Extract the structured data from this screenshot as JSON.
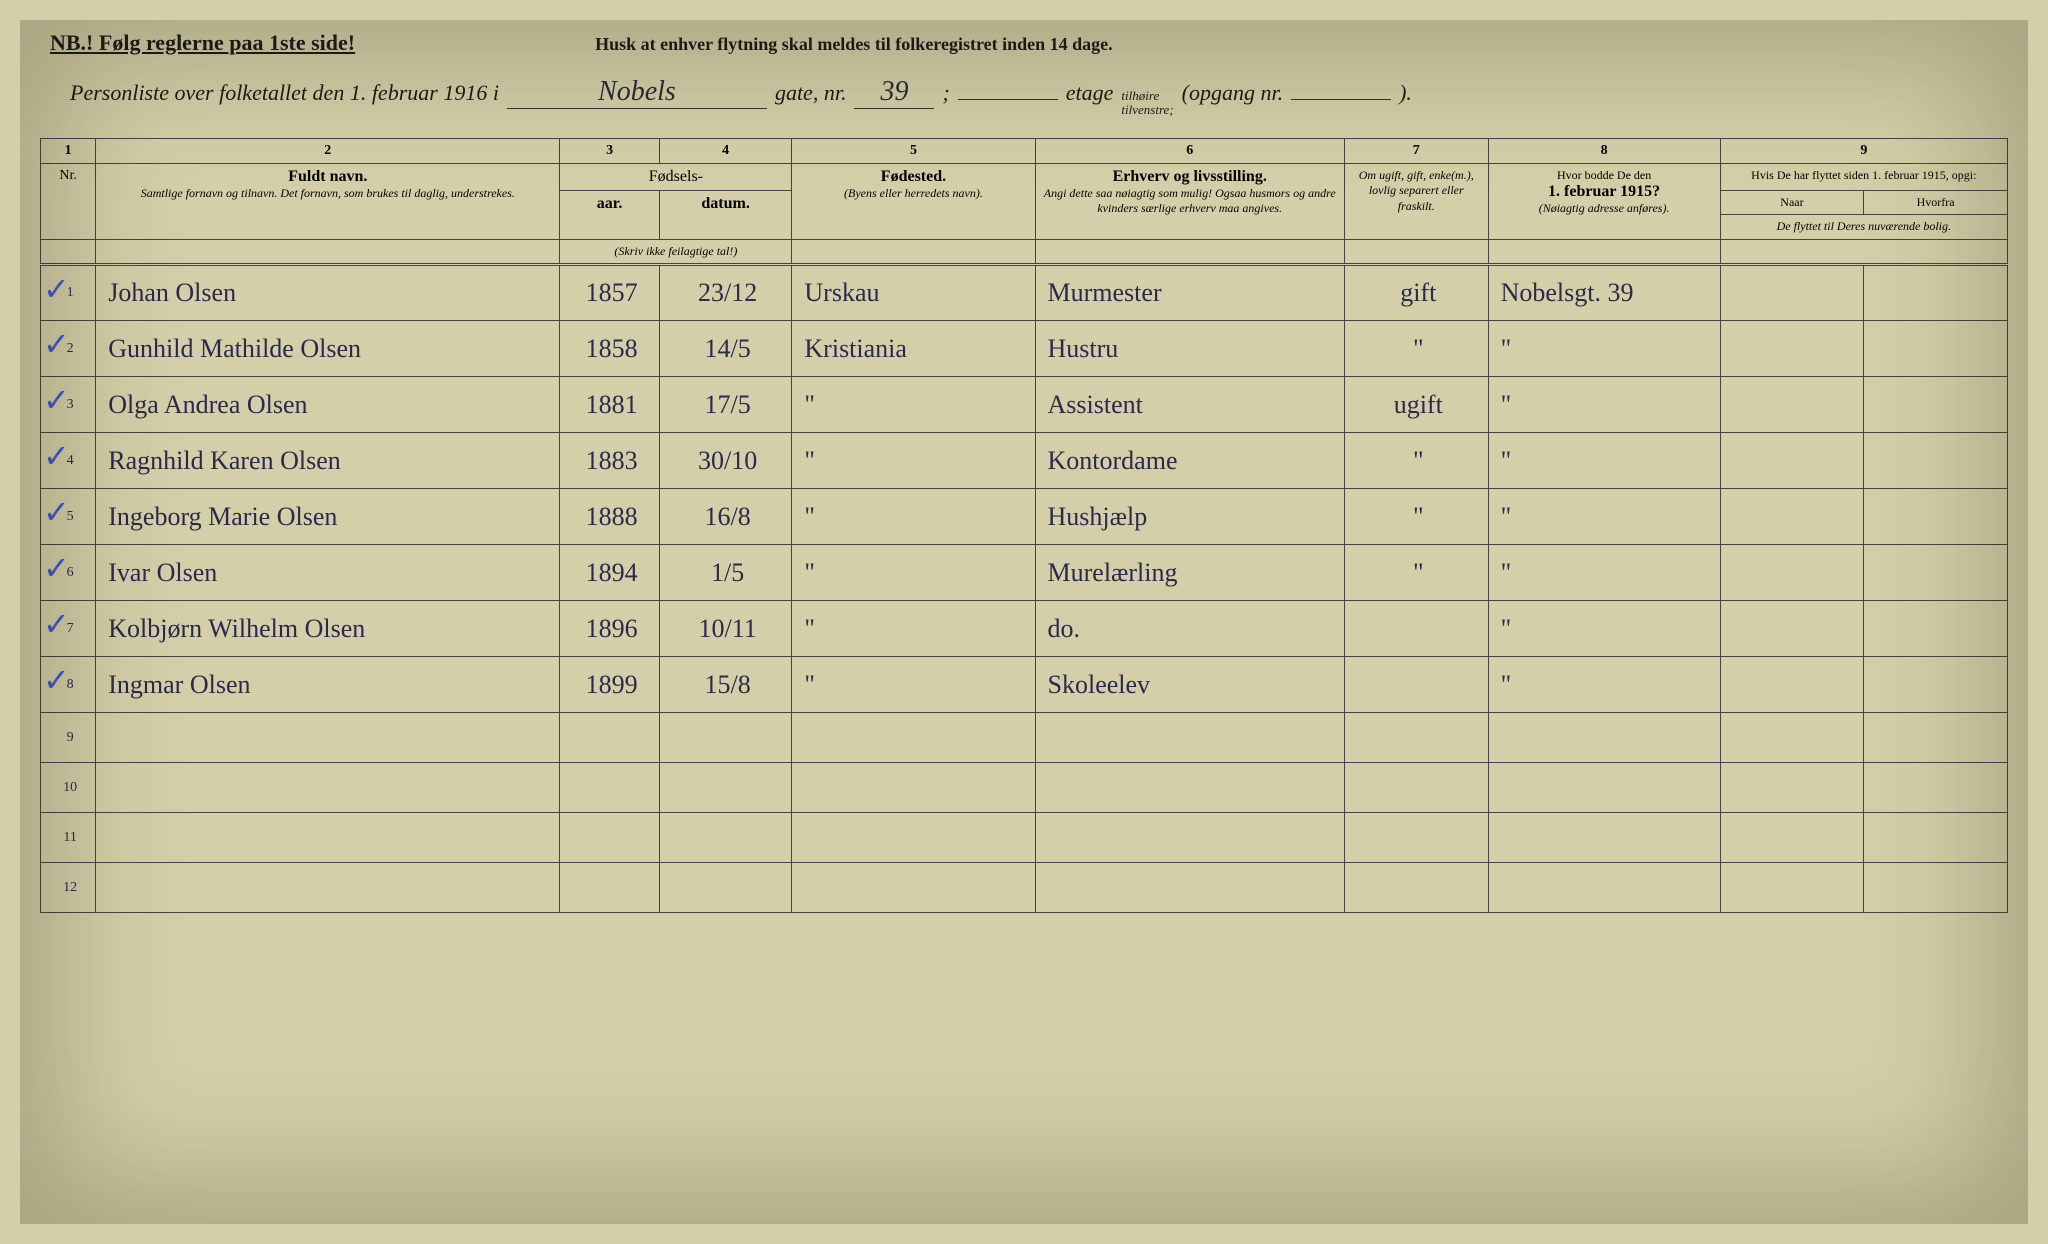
{
  "header": {
    "nb": "NB.! Følg reglerne paa 1ste side!",
    "reminder": "Husk at enhver flytning skal meldes til folkeregistret inden 14 dage.",
    "title_prefix": "Personliste over folketallet den 1. februar 1916 i",
    "street_name": "Nobels",
    "gate_label": "gate, nr.",
    "gate_nr": "39",
    "semicolon": ";",
    "etage_label": "etage",
    "etage_value": "",
    "tilheire": "tilhøire",
    "tilvenstre": "tilvenstre;",
    "opgang_label": "(opgang nr.",
    "opgang_value": "",
    "closing_paren": ")."
  },
  "column_numbers": [
    "1",
    "2",
    "3",
    "4",
    "5",
    "6",
    "7",
    "8",
    "9"
  ],
  "columns": {
    "nr": "Nr.",
    "fuldt_navn_main": "Fuldt navn.",
    "fuldt_navn_sub": "Samtlige fornavn og tilnavn. Det fornavn, som brukes til daglig, understrekes.",
    "fodsels": "Fødsels-",
    "aar": "aar.",
    "datum": "datum.",
    "aar_note": "(Skriv ikke feilagtige tal!)",
    "fodested_main": "Fødested.",
    "fodested_sub": "(Byens eller herredets navn).",
    "erhverv_main": "Erhverv og livsstilling.",
    "erhverv_sub": "Angi dette saa nøiagtig som mulig! Ogsaa husmors og andre kvinders særlige erhverv maa angives.",
    "om_ugift": "Om ugift, gift, enke(m.), lovlig separert eller fraskilt.",
    "hvor_bodde_main": "Hvor bodde De den 1. februar 1915?",
    "hvor_bodde_sub": "(Nøiagtig adresse anføres).",
    "flyttet_main": "Hvis De har flyttet siden 1. februar 1915, opgi:",
    "naar": "Naar",
    "hvorfra": "Hvorfra",
    "flyttet_sub": "De flyttet til Deres nuværende bolig."
  },
  "rows": [
    {
      "nr": "1",
      "check": true,
      "navn": "Johan Olsen",
      "aar": "1857",
      "datum": "23/12",
      "fodested": "Urskau",
      "erhverv": "Murmester",
      "status": "gift",
      "bodde": "Nobelsgt. 39",
      "naar": "",
      "hvorfra": ""
    },
    {
      "nr": "2",
      "check": true,
      "navn": "Gunhild Mathilde Olsen",
      "aar": "1858",
      "datum": "14/5",
      "fodested": "Kristiania",
      "erhverv": "Hustru",
      "status": "\"",
      "bodde": "\"",
      "naar": "",
      "hvorfra": ""
    },
    {
      "nr": "3",
      "check": true,
      "navn": "Olga Andrea Olsen",
      "aar": "1881",
      "datum": "17/5",
      "fodested": "\"",
      "erhverv": "Assistent",
      "status": "ugift",
      "bodde": "\"",
      "naar": "",
      "hvorfra": ""
    },
    {
      "nr": "4",
      "check": true,
      "navn": "Ragnhild Karen Olsen",
      "aar": "1883",
      "datum": "30/10",
      "fodested": "\"",
      "erhverv": "Kontordame",
      "status": "\"",
      "bodde": "\"",
      "naar": "",
      "hvorfra": ""
    },
    {
      "nr": "5",
      "check": true,
      "navn": "Ingeborg Marie Olsen",
      "aar": "1888",
      "datum": "16/8",
      "fodested": "\"",
      "erhverv": "Hushjælp",
      "status": "\"",
      "bodde": "\"",
      "naar": "",
      "hvorfra": ""
    },
    {
      "nr": "6",
      "check": true,
      "navn": "Ivar Olsen",
      "aar": "1894",
      "datum": "1/5",
      "fodested": "\"",
      "erhverv": "Murelærling",
      "status": "\"",
      "bodde": "\"",
      "naar": "",
      "hvorfra": ""
    },
    {
      "nr": "7",
      "check": true,
      "navn": "Kolbjørn Wilhelm Olsen",
      "aar": "1896",
      "datum": "10/11",
      "fodested": "\"",
      "erhverv": "do.",
      "status": "",
      "bodde": "\"",
      "naar": "",
      "hvorfra": ""
    },
    {
      "nr": "8",
      "check": true,
      "navn": "Ingmar Olsen",
      "aar": "1899",
      "datum": "15/8",
      "fodested": "\"",
      "erhverv": "Skoleelev",
      "status": "",
      "bodde": "\"",
      "naar": "",
      "hvorfra": ""
    }
  ],
  "empty_rows": [
    "9",
    "10",
    "11",
    "12"
  ],
  "styling": {
    "background_color": "#d4cfa8",
    "text_color": "#1a1a1a",
    "cursive_color": "#2a2a4a",
    "checkmark_color": "#3a5aca",
    "border_color": "#444444",
    "header_font_size": 22,
    "body_font_size": 14,
    "cursive_font_size": 26
  }
}
